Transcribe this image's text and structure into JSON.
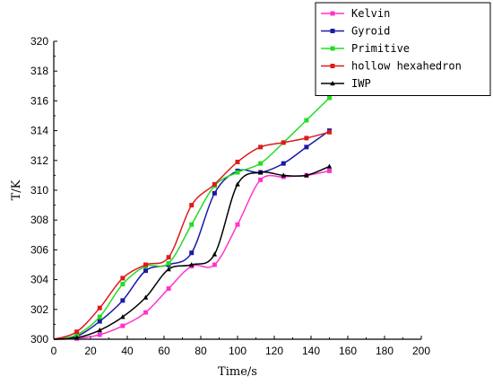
{
  "chart_data": {
    "type": "line",
    "title": "",
    "xlabel": "Time/s",
    "ylabel": "T/K",
    "xlim": [
      0,
      200
    ],
    "ylim": [
      300,
      320
    ],
    "xticks": [
      0,
      20,
      40,
      60,
      80,
      100,
      120,
      140,
      160,
      180,
      200
    ],
    "yticks": [
      300,
      302,
      304,
      306,
      308,
      310,
      312,
      314,
      316,
      318,
      320
    ],
    "grid": false,
    "legend_position": "top-right",
    "series": [
      {
        "name": "Kelvin",
        "color": "#ff33cc",
        "marker": "square",
        "x": [
          0,
          12.5,
          25,
          37.5,
          50,
          62.5,
          75,
          87.5,
          100,
          112.5,
          125,
          137.5,
          150
        ],
        "y": [
          300,
          300.05,
          300.3,
          300.9,
          301.8,
          303.4,
          304.9,
          305.0,
          307.7,
          310.7,
          310.9,
          311.0,
          311.3
        ]
      },
      {
        "name": "Gyroid",
        "color": "#1a1aa6",
        "marker": "square",
        "x": [
          0,
          12.5,
          25,
          37.5,
          50,
          62.5,
          75,
          87.5,
          100,
          112.5,
          125,
          137.5,
          150
        ],
        "y": [
          300,
          300.2,
          301.2,
          302.6,
          304.6,
          305.0,
          305.8,
          309.8,
          311.3,
          311.2,
          311.8,
          312.9,
          314.0
        ]
      },
      {
        "name": "Primitive",
        "color": "#22dd22",
        "marker": "square",
        "x": [
          0,
          12.5,
          25,
          37.5,
          50,
          62.5,
          75,
          87.5,
          100,
          112.5,
          125,
          137.5,
          150
        ],
        "y": [
          300,
          300.3,
          301.5,
          303.7,
          304.9,
          305.1,
          307.7,
          310.3,
          311.2,
          311.8,
          313.2,
          314.7,
          316.2
        ]
      },
      {
        "name": "hollow hexahedron",
        "color": "#e01a1a",
        "marker": "square",
        "x": [
          0,
          12.5,
          25,
          37.5,
          50,
          62.5,
          75,
          87.5,
          100,
          112.5,
          125,
          137.5,
          150
        ],
        "y": [
          300,
          300.5,
          302.1,
          304.1,
          305.0,
          305.5,
          309.0,
          310.4,
          311.9,
          312.9,
          313.2,
          313.5,
          313.9
        ]
      },
      {
        "name": "IWP",
        "color": "#000000",
        "marker": "triangle",
        "x": [
          0,
          12.5,
          25,
          37.5,
          50,
          62.5,
          75,
          87.5,
          100,
          112.5,
          125,
          137.5,
          150
        ],
        "y": [
          300,
          300.1,
          300.6,
          301.5,
          302.8,
          304.7,
          305.0,
          305.7,
          310.4,
          311.2,
          311.0,
          311.0,
          311.6
        ]
      }
    ]
  }
}
